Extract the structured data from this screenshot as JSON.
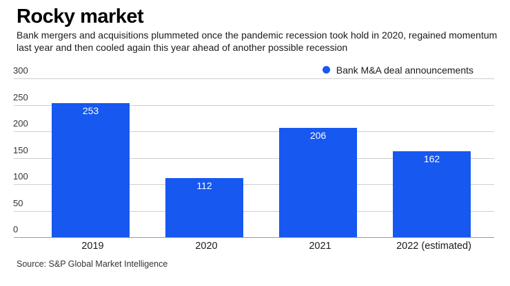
{
  "header": {
    "title": "Rocky market",
    "subtitle": "Bank mergers and acquisitions plummeted once the pandemic recession took hold in 2020, regained momentum last year and then cooled again this year ahead of another possible recession"
  },
  "legend": {
    "label": "Bank M&A deal announcements",
    "marker_color": "#1658F0"
  },
  "chart_data": {
    "type": "bar",
    "categories": [
      "2019",
      "2020",
      "2021",
      "2022 (estimated)"
    ],
    "values": [
      253,
      112,
      206,
      162
    ],
    "series_name": "Bank M&A deal announcements",
    "title": "Rocky market",
    "xlabel": "",
    "ylabel": "",
    "ylim": [
      0,
      300
    ],
    "yticks": [
      0,
      50,
      100,
      150,
      200,
      250,
      300
    ],
    "grid": true,
    "legend_position": "top-right",
    "bar_color": "#1658F0",
    "value_label_color": "#ffffff",
    "gridline_color": "#cdcdcd",
    "axis_line_color": "#9a9a9a"
  },
  "source": "Source: S&P Global Market Intelligence"
}
